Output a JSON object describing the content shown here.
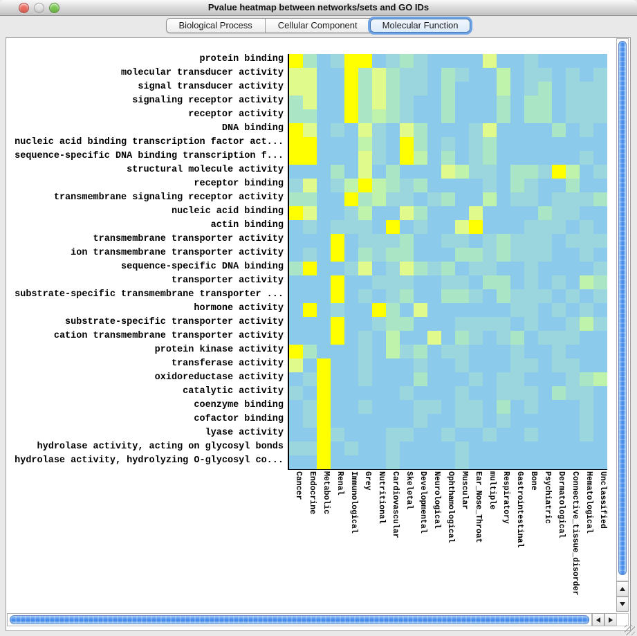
{
  "window": {
    "title": "Pvalue heatmap between networks/sets and GO IDs",
    "traffic_lights": [
      {
        "name": "close-button",
        "color": "#ED6A5E"
      },
      {
        "name": "minimize-button",
        "color": "#E2E2E2"
      },
      {
        "name": "zoom-button",
        "color": "#78C750"
      }
    ]
  },
  "tabs": [
    {
      "label": "Biological Process",
      "selected": false
    },
    {
      "label": "Cellular Component",
      "selected": false
    },
    {
      "label": "Molecular Function",
      "selected": true
    }
  ],
  "accent": {
    "selected_tab_ring": "#6FA3E3",
    "scrollbar_thumb_blue": "#4F93EE"
  },
  "chart_data": {
    "type": "heatmap",
    "title": "Pvalue heatmap between networks/sets and GO IDs",
    "rows": [
      "protein binding",
      "molecular transducer activity",
      "signal transducer activity",
      "signaling receptor activity",
      "receptor activity",
      "DNA binding",
      "nucleic acid binding transcription factor act...",
      "sequence-specific DNA binding transcription f...",
      "structural molecule activity",
      "receptor binding",
      "transmembrane signaling receptor activity",
      "nucleic acid binding",
      "actin binding",
      "transmembrane transporter activity",
      "ion transmembrane transporter activity",
      "sequence-specific DNA binding",
      "transporter activity",
      "substrate-specific transmembrane transporter ...",
      "hormone activity",
      "substrate-specific transporter activity",
      "cation transmembrane transporter activity",
      "protein kinase activity",
      "transferase activity",
      "oxidoreductase activity",
      "catalytic activity",
      "coenzyme binding",
      "cofactor binding",
      "lyase activity",
      "hydrolase activity, acting on glycosyl bonds",
      "hydrolase activity, hydrolyzing O-glycosyl co..."
    ],
    "columns": [
      "Cancer",
      "Endocrine",
      "Metabolic",
      "Renal",
      "Immunological",
      "Grey",
      "Nutritional",
      "Cardiovascular",
      "Skeletal",
      "Developmental",
      "Neurological",
      "Ophthamological",
      "Muscular",
      "Ear_Nose_Throat",
      "multiple",
      "Respiratory",
      "Gastrointestinal",
      "Bone",
      "Psychiatric",
      "Dermatological",
      "Connective_tissue_disorder",
      "Hematological",
      "Unclassified"
    ],
    "value_levels": "0 lowest significance (blue) to 5 highest significance (bright yellow)",
    "palette": {
      "0": "#8CCAEC",
      "1": "#9BD6DF",
      "2": "#AAE5C6",
      "3": "#BFF2AA",
      "4": "#E0FA8C",
      "5": "#FFFF00"
    },
    "matrix": [
      "52015501210000400100000",
      "44005242110210030110101",
      "44005242110200030120111",
      "24005242100200020220111",
      "22005232100200020220111",
      "54010410420001400002010",
      "55000310520101200000000",
      "55000410530201200000010",
      "00020402000431102215301",
      "14013532120000102100200",
      "22005231101200301101112",
      "54001300420004000021100",
      "01011105010045000111010",
      "00050111200110121110111",
      "01050212200022121110010",
      "25001401421201100100001",
      "00050011100110220101032",
      "00050101200221021110101",
      "05010052040000001101010",
      "00050012200011110100131",
      "00050103004021012011100",
      "52000103120110001001000",
      "40500100010010001101100",
      "01500100020001011000123",
      "10500000100010011102110",
      "01500100011011020100010",
      "01500000010011010000010",
      "00510001100100100100010",
      "11501001000010000000000",
      "00500001000010000000000"
    ]
  }
}
